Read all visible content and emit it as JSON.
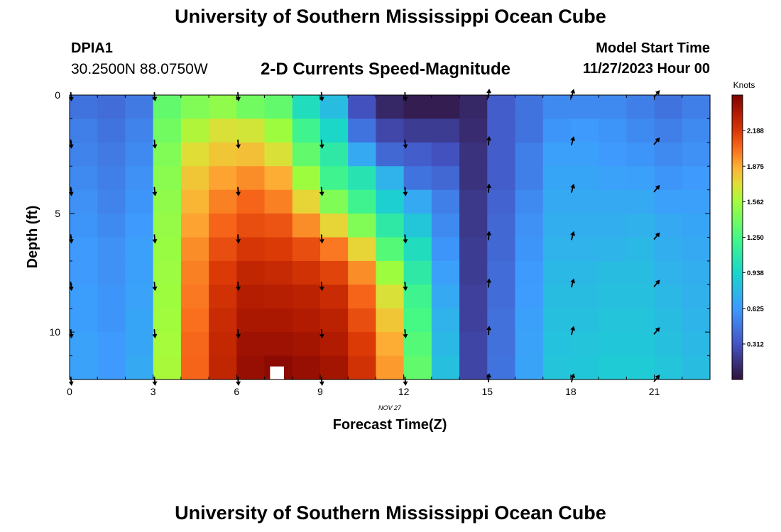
{
  "header": {
    "title": "University of Southern Mississippi Ocean Cube",
    "station": "DPIA1",
    "coordinates": "30.2500N  88.0750W",
    "subtitle": "2-D Currents Speed-Magnitude",
    "model_start_label": "Model Start Time",
    "model_start_value": "11/27/2023 Hour 00"
  },
  "footer": {
    "title": "University of Southern Mississippi Ocean Cube"
  },
  "chart_data": {
    "type": "heatmap",
    "title": "2-D Currents Speed-Magnitude",
    "xlabel": "Forecast Time(Z)",
    "ylabel": "Depth (ft)",
    "date_label": "NOV 27",
    "x_range": [
      0,
      23
    ],
    "y_range": [
      0,
      12
    ],
    "x_ticks": [
      0,
      3,
      6,
      9,
      12,
      15,
      18,
      21
    ],
    "y_ticks": [
      0,
      5,
      10
    ],
    "colorbar": {
      "label": "Knots",
      "range": [
        0,
        2.5
      ],
      "ticks": [
        "2.188",
        "1.875",
        "1.562",
        "1.250",
        "0.938",
        "0.625",
        "0.312"
      ],
      "tick_values": [
        2.188,
        1.875,
        1.562,
        1.25,
        0.938,
        0.625,
        0.312
      ]
    },
    "hours": [
      0,
      1,
      2,
      3,
      4,
      5,
      6,
      7,
      8,
      9,
      10,
      11,
      12,
      13,
      14,
      15,
      16,
      17,
      18,
      19,
      20,
      21,
      22
    ],
    "depths": [
      0,
      1,
      2,
      3,
      4,
      5,
      6,
      7,
      8,
      9,
      10,
      11
    ],
    "speed_knots": [
      [
        0.45,
        0.42,
        0.48,
        1.35,
        1.45,
        1.5,
        1.4,
        1.35,
        1.0,
        0.8,
        0.3,
        0.1,
        0.05,
        0.05,
        0.1,
        0.35,
        0.45,
        0.55,
        0.55,
        0.55,
        0.5,
        0.45,
        0.5
      ],
      [
        0.5,
        0.45,
        0.52,
        1.4,
        1.6,
        1.7,
        1.68,
        1.55,
        1.2,
        0.95,
        0.45,
        0.25,
        0.2,
        0.2,
        0.12,
        0.35,
        0.45,
        0.6,
        0.62,
        0.6,
        0.55,
        0.5,
        0.55
      ],
      [
        0.52,
        0.48,
        0.55,
        1.45,
        1.72,
        1.8,
        1.82,
        1.7,
        1.35,
        1.1,
        0.7,
        0.4,
        0.35,
        0.3,
        0.15,
        0.35,
        0.5,
        0.65,
        0.65,
        0.62,
        0.6,
        0.55,
        0.58
      ],
      [
        0.55,
        0.5,
        0.58,
        1.48,
        1.8,
        1.9,
        1.95,
        1.88,
        1.55,
        1.2,
        1.05,
        0.75,
        0.45,
        0.4,
        0.15,
        0.35,
        0.5,
        0.68,
        0.68,
        0.66,
        0.65,
        0.6,
        0.62
      ],
      [
        0.58,
        0.52,
        0.6,
        1.5,
        1.85,
        1.98,
        2.05,
        1.98,
        1.75,
        1.45,
        1.2,
        0.9,
        0.7,
        0.5,
        0.18,
        0.38,
        0.55,
        0.7,
        0.7,
        0.7,
        0.7,
        0.65,
        0.65
      ],
      [
        0.6,
        0.55,
        0.62,
        1.52,
        1.9,
        2.05,
        2.12,
        2.1,
        1.95,
        1.75,
        1.45,
        1.1,
        0.85,
        0.55,
        0.18,
        0.4,
        0.58,
        0.72,
        0.72,
        0.72,
        0.74,
        0.7,
        0.68
      ],
      [
        0.62,
        0.58,
        0.65,
        1.53,
        1.95,
        2.12,
        2.2,
        2.18,
        2.12,
        2.0,
        1.75,
        1.3,
        1.0,
        0.6,
        0.2,
        0.4,
        0.6,
        0.75,
        0.75,
        0.76,
        0.78,
        0.72,
        0.7
      ],
      [
        0.62,
        0.58,
        0.65,
        1.54,
        1.98,
        2.18,
        2.28,
        2.26,
        2.22,
        2.15,
        1.95,
        1.55,
        1.1,
        0.65,
        0.2,
        0.42,
        0.62,
        0.78,
        0.78,
        0.8,
        0.8,
        0.75,
        0.72
      ],
      [
        0.64,
        0.6,
        0.66,
        1.55,
        2.0,
        2.22,
        2.33,
        2.32,
        2.3,
        2.25,
        2.05,
        1.7,
        1.2,
        0.7,
        0.22,
        0.42,
        0.63,
        0.8,
        0.8,
        0.82,
        0.82,
        0.78,
        0.74
      ],
      [
        0.64,
        0.6,
        0.68,
        1.56,
        2.02,
        2.25,
        2.36,
        2.36,
        2.34,
        2.3,
        2.12,
        1.8,
        1.25,
        0.75,
        0.22,
        0.44,
        0.65,
        0.82,
        0.82,
        0.84,
        0.84,
        0.8,
        0.76
      ],
      [
        0.66,
        0.62,
        0.68,
        1.57,
        2.04,
        2.27,
        2.4,
        2.4,
        2.38,
        2.34,
        2.18,
        1.88,
        1.3,
        0.78,
        0.24,
        0.44,
        0.66,
        0.83,
        0.84,
        0.86,
        0.86,
        0.82,
        0.78
      ],
      [
        0.66,
        0.62,
        0.7,
        1.58,
        2.05,
        2.28,
        2.42,
        2.45,
        2.42,
        2.38,
        2.22,
        1.92,
        1.35,
        0.82,
        0.24,
        0.45,
        0.67,
        0.84,
        0.86,
        0.88,
        0.88,
        0.84,
        0.8
      ]
    ],
    "missing_cells": [
      [
        7,
        11
      ]
    ],
    "arrows": {
      "hours": [
        0,
        3,
        6,
        9,
        12,
        15,
        18,
        21
      ],
      "depths": [
        0,
        2,
        4,
        6,
        8,
        10,
        12
      ],
      "direction_deg": [
        175,
        175,
        175,
        175,
        175,
        5,
        15,
        40
      ]
    }
  }
}
